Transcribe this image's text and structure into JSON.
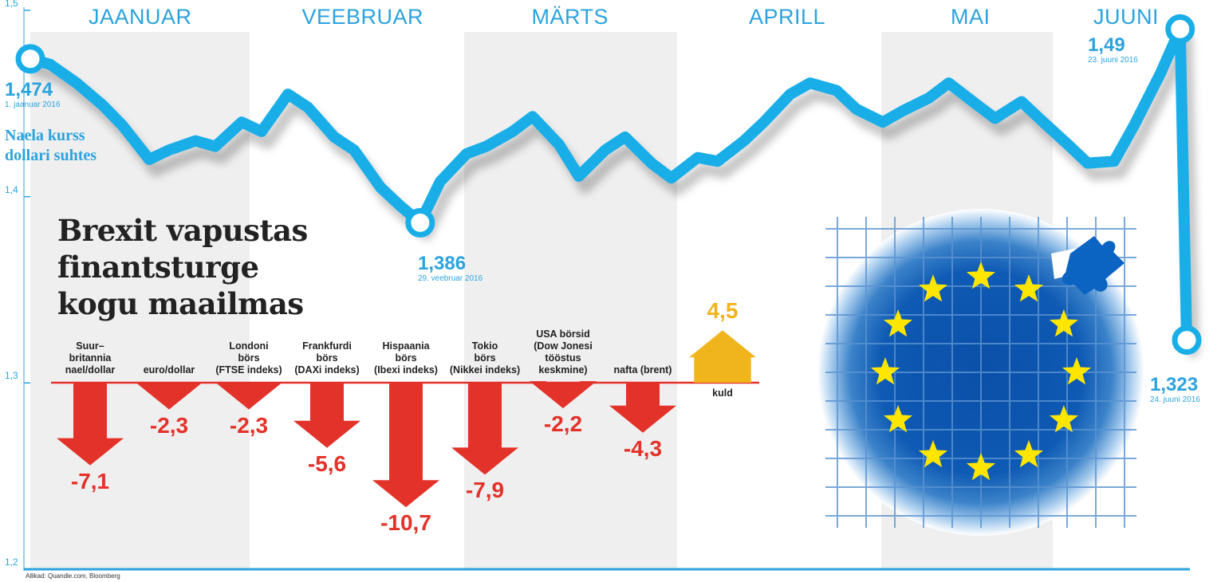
{
  "months": [
    "JAANUAR",
    "VEEBRUAR",
    "MÄRTS",
    "APRILL",
    "MAI",
    "JUUNI"
  ],
  "title_lines": [
    "Brexit vapustas",
    "finantsturge",
    "kogu maailmas"
  ],
  "ylabel_lines": [
    "Naela kurss",
    "dollari suhtes"
  ],
  "source": "Allikad: Quandle.com, Bloomberg",
  "colors": {
    "line": "#19aee8",
    "bar_neg": "#e3322a",
    "bar_pos": "#f0b51c",
    "band": "#efefef",
    "accent_text": "#2ba3de",
    "eu_blue": "#0b4fa8",
    "eu_star": "#ffe600"
  },
  "chart_data": [
    {
      "type": "line",
      "title": "",
      "ylabel": "Naela kurss dollari suhtes",
      "ylim": [
        1.2,
        1.5
      ],
      "yticks": [
        "1,5",
        "1,4",
        "1,3",
        "1,2"
      ],
      "x_range": [
        "2016-01-01",
        "2016-06-24"
      ],
      "series": [
        {
          "points": [
            [
              "2016-01-01",
              1.474
            ],
            [
              "2016-01-04",
              1.471
            ],
            [
              "2016-01-08",
              1.461
            ],
            [
              "2016-01-12",
              1.449
            ],
            [
              "2016-01-15",
              1.438
            ],
            [
              "2016-01-19",
              1.42
            ],
            [
              "2016-01-22",
              1.425
            ],
            [
              "2016-01-26",
              1.43
            ],
            [
              "2016-01-29",
              1.427
            ],
            [
              "2016-02-02",
              1.44
            ],
            [
              "2016-02-05",
              1.435
            ],
            [
              "2016-02-09",
              1.455
            ],
            [
              "2016-02-12",
              1.448
            ],
            [
              "2016-02-16",
              1.432
            ],
            [
              "2016-02-19",
              1.425
            ],
            [
              "2016-02-23",
              1.405
            ],
            [
              "2016-02-26",
              1.395
            ],
            [
              "2016-02-29",
              1.386
            ],
            [
              "2016-03-03",
              1.408
            ],
            [
              "2016-03-07",
              1.423
            ],
            [
              "2016-03-10",
              1.427
            ],
            [
              "2016-03-14",
              1.435
            ],
            [
              "2016-03-17",
              1.443
            ],
            [
              "2016-03-21",
              1.428
            ],
            [
              "2016-03-24",
              1.411
            ],
            [
              "2016-03-28",
              1.425
            ],
            [
              "2016-03-31",
              1.432
            ],
            [
              "2016-04-04",
              1.418
            ],
            [
              "2016-04-07",
              1.41
            ],
            [
              "2016-04-11",
              1.421
            ],
            [
              "2016-04-14",
              1.419
            ],
            [
              "2016-04-18",
              1.43
            ],
            [
              "2016-04-21",
              1.44
            ],
            [
              "2016-04-25",
              1.455
            ],
            [
              "2016-04-28",
              1.461
            ],
            [
              "2016-05-02",
              1.457
            ],
            [
              "2016-05-05",
              1.447
            ],
            [
              "2016-05-09",
              1.44
            ],
            [
              "2016-05-12",
              1.446
            ],
            [
              "2016-05-16",
              1.453
            ],
            [
              "2016-05-19",
              1.461
            ],
            [
              "2016-05-23",
              1.45
            ],
            [
              "2016-05-26",
              1.442
            ],
            [
              "2016-05-30",
              1.451
            ],
            [
              "2016-06-02",
              1.441
            ],
            [
              "2016-06-06",
              1.428
            ],
            [
              "2016-06-09",
              1.418
            ],
            [
              "2016-06-13",
              1.419
            ],
            [
              "2016-06-16",
              1.438
            ],
            [
              "2016-06-20",
              1.466
            ],
            [
              "2016-06-23",
              1.49
            ],
            [
              "2016-06-24",
              1.323
            ]
          ]
        }
      ],
      "annotations": [
        {
          "value": "1,474",
          "date_label": "1. jaanuar 2016"
        },
        {
          "value": "1,386",
          "date_label": "29. veebruar 2016"
        },
        {
          "value": "1,49",
          "date_label": "23. juuni 2016"
        },
        {
          "value": "1,323",
          "date_label": "24. juuni 2016"
        }
      ]
    },
    {
      "type": "bar",
      "categories": [
        "Suur–britannia nael/dollar",
        "euro/dollar",
        "Londoni börs (FTSE indeks)",
        "Frankfurdi börs (DAXi indeks)",
        "Hispaania börs (Ibexi indeks)",
        "Tokio börs (Nikkei indeks)",
        "USA börsid (Dow Jonesi tööstus keskmine)",
        "nafta (brent)",
        "kuld"
      ],
      "values": [
        -7.1,
        -2.3,
        -2.3,
        -5.6,
        -10.7,
        -7.9,
        -2.2,
        -4.3,
        4.5
      ],
      "value_labels": [
        "-7,1",
        "-2,3",
        "-2,3",
        "-5,6",
        "-10,7",
        "-7,9",
        "-2,2",
        "-4,3",
        "4,5"
      ]
    }
  ],
  "bar_label_lines": [
    [
      "Suur–",
      "britannia",
      "nael/dollar"
    ],
    [
      "euro/dollar"
    ],
    [
      "Londoni",
      "börs",
      "(FTSE indeks)"
    ],
    [
      "Frankfurdi",
      "börs",
      "(DAXi indeks)"
    ],
    [
      "Hispaania",
      "börs",
      "(Ibexi indeks)"
    ],
    [
      "Tokio",
      "börs",
      "(Nikkei indeks)"
    ],
    [
      "USA börsid",
      "(Dow Jonesi",
      "tööstus",
      "keskmine)"
    ],
    [
      "nafta (brent)"
    ],
    [
      "kuld"
    ]
  ]
}
